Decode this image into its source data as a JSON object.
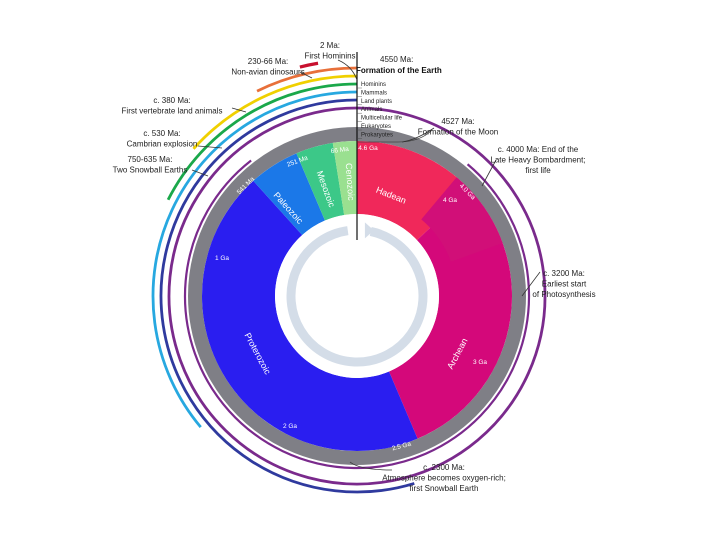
{
  "center": {
    "top_label": "4550 Ma:",
    "title": "Formation of the Earth"
  },
  "legend": [
    {
      "label": "Hominins",
      "color": "#c8102e"
    },
    {
      "label": "Mammals",
      "color": "#e8703a"
    },
    {
      "label": "Land plants",
      "color": "#f0d000"
    },
    {
      "label": "Animals",
      "color": "#1aa84a"
    },
    {
      "label": "Multicellular life",
      "color": "#27a8e0"
    },
    {
      "label": "Eukaryotes",
      "color": "#2f3a9e"
    },
    {
      "label": "Prokaryotes",
      "color": "#7a2a8c"
    }
  ],
  "eons": [
    {
      "label": "Hadean",
      "color": "#f0285a"
    },
    {
      "label": "Archean",
      "color": "#d4087a"
    },
    {
      "label": "Proterozoic",
      "color": "#2a1ef0"
    },
    {
      "label": "Paleozoic",
      "color": "#1b78e8"
    },
    {
      "label": "Mesozoic",
      "color": "#3cc888"
    },
    {
      "label": "Cenozoic",
      "color": "#9ae090"
    }
  ],
  "ticks": [
    "4.6 Ga",
    "4 Ga",
    "4.0 Ga",
    "3 Ga",
    "2.5 Ga",
    "2 Ga",
    "1 Ga",
    "541 Ma",
    "251 Ma",
    "66 Ma"
  ],
  "annotations": [
    {
      "lines": [
        "2 Ma:",
        "First Hominins"
      ]
    },
    {
      "lines": [
        "230-66 Ma:",
        "Non-avian dinosaurs"
      ]
    },
    {
      "lines": [
        "c. 380 Ma:",
        "First vertebrate land animals"
      ]
    },
    {
      "lines": [
        "c. 530 Ma:",
        "Cambrian explosion"
      ]
    },
    {
      "lines": [
        "750-635 Ma:",
        "Two Snowball Earths"
      ]
    },
    {
      "lines": [
        "4527 Ma:",
        "Formation of the Moon"
      ]
    },
    {
      "lines": [
        "c. 4000 Ma: End of the",
        "Late Heavy Bombardment;",
        "first life"
      ]
    },
    {
      "lines": [
        "c. 3200 Ma:",
        "Earliest start",
        "of Photosynthesis"
      ]
    },
    {
      "lines": [
        "c. 2300 Ma:",
        "Atmosphere becomes oxygen-rich;",
        "first Snowball Earth"
      ]
    }
  ]
}
